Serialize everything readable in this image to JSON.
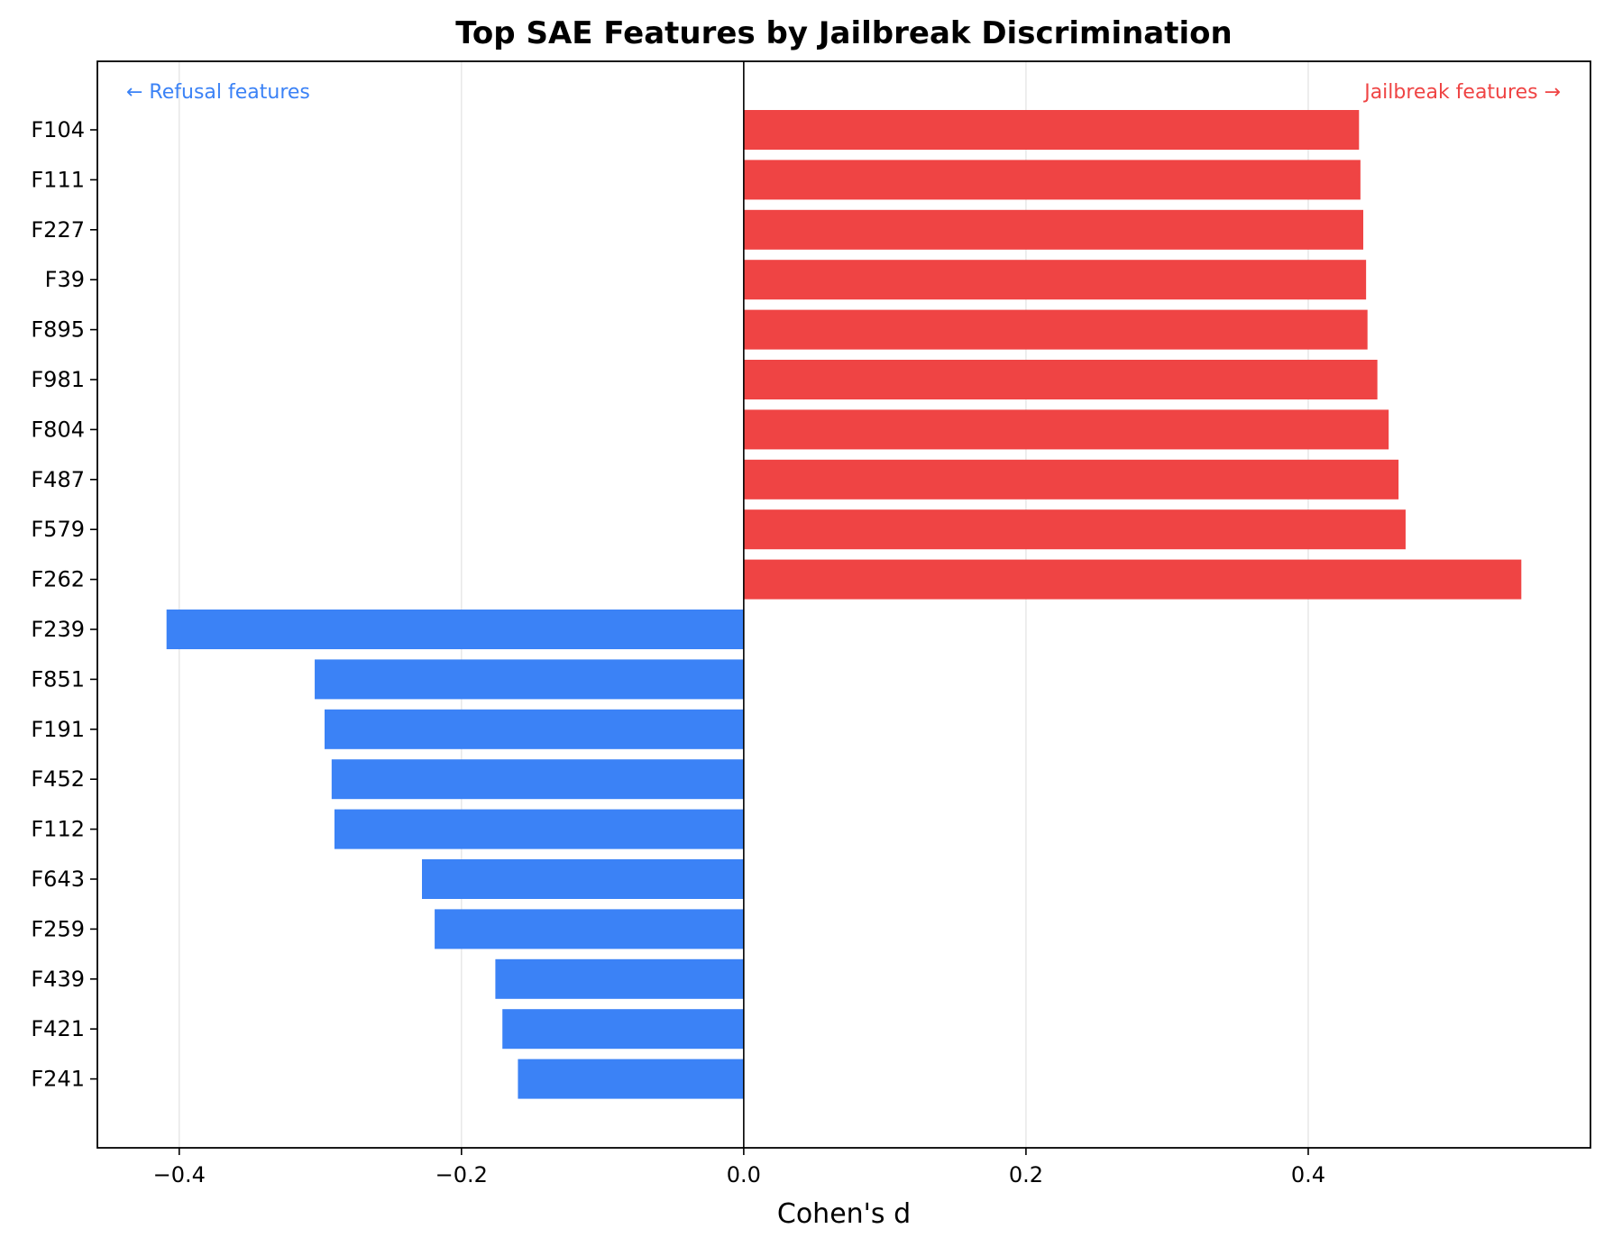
{
  "chart_data": {
    "type": "bar",
    "orientation": "horizontal",
    "title": "Top SAE Features by Jailbreak Discrimination",
    "xlabel": "Cohen's d",
    "ylabel": "",
    "xlim": [
      -0.458,
      0.6
    ],
    "grid": "vertical",
    "xticks": [
      -0.4,
      -0.2,
      0.0,
      0.2,
      0.4
    ],
    "xtick_labels": [
      "−0.4",
      "−0.2",
      "0.0",
      "0.2",
      "0.4"
    ],
    "categories": [
      "F104",
      "F111",
      "F227",
      "F39",
      "F895",
      "F981",
      "F804",
      "F487",
      "F579",
      "F262",
      "F239",
      "F851",
      "F191",
      "F452",
      "F112",
      "F643",
      "F259",
      "F439",
      "F421",
      "F241"
    ],
    "values": [
      0.436,
      0.437,
      0.439,
      0.441,
      0.442,
      0.449,
      0.457,
      0.464,
      0.469,
      0.551,
      -0.409,
      -0.304,
      -0.297,
      -0.292,
      -0.29,
      -0.228,
      -0.219,
      -0.176,
      -0.171,
      -0.16
    ],
    "colors": {
      "positive": "#ef4444",
      "negative": "#3b82f6"
    },
    "annotations": {
      "left": "← Refusal features",
      "right": "Jailbreak features →"
    }
  }
}
